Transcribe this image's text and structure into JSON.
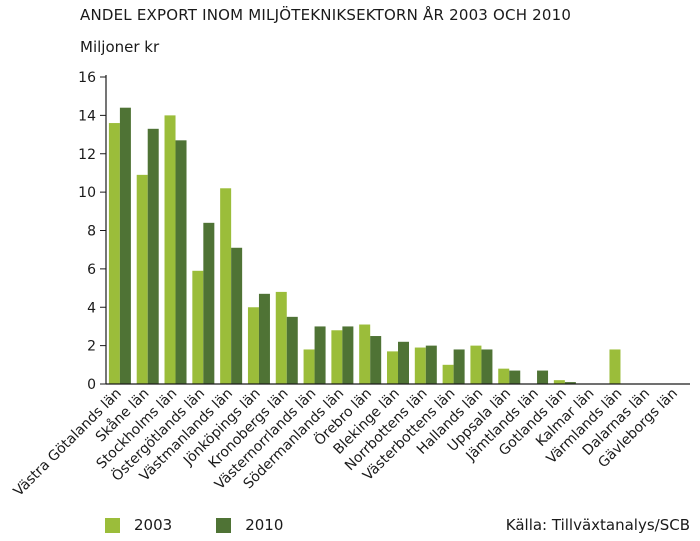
{
  "colors": {
    "s2003": "#9bbd3a",
    "s2010": "#4f7335",
    "axis": "#1a1a1a"
  },
  "source": "Källa: Tillväxtanalys/SCB",
  "chart_data": {
    "type": "bar",
    "title": "ANDEL EXPORT INOM MILJÖTEKNIKSEKTORN ÅR 2003 OCH 2010",
    "ylabel": "Miljoner kr",
    "xlabel": "",
    "ylim": [
      0,
      16
    ],
    "yticks": [
      0,
      2,
      4,
      6,
      8,
      10,
      12,
      14,
      16
    ],
    "grid": false,
    "legend_position": "bottom-left",
    "categories": [
      "Västra Götalands län",
      "Skåne län",
      "Stockholms län",
      "Östergötlands län",
      "Västmanlands län",
      "Jönköpings län",
      "Kronobergs län",
      "Västernorrlands län",
      "Södermanlands län",
      "Örebro län",
      "Blekinge län",
      "Norrbottens län",
      "Västerbottens län",
      "Hallands län",
      "Uppsala län",
      "Jämtlands län",
      "Gotlands län",
      "Kalmar län",
      "Värmlands län",
      "Dalarnas län",
      "Gävleborgs län"
    ],
    "series": [
      {
        "name": "2003",
        "values": [
          13.6,
          10.9,
          14.0,
          5.9,
          10.2,
          4.0,
          4.8,
          1.8,
          2.8,
          3.1,
          1.7,
          1.9,
          1.0,
          2.0,
          0.8,
          0.0,
          0.2,
          0.0,
          1.8,
          0.0,
          0.0
        ]
      },
      {
        "name": "2010",
        "values": [
          14.4,
          13.3,
          12.7,
          8.4,
          7.1,
          4.7,
          3.5,
          3.0,
          3.0,
          2.5,
          2.2,
          2.0,
          1.8,
          1.8,
          0.7,
          0.7,
          0.1,
          0.0,
          0.0,
          0.0,
          0.0
        ]
      }
    ]
  }
}
